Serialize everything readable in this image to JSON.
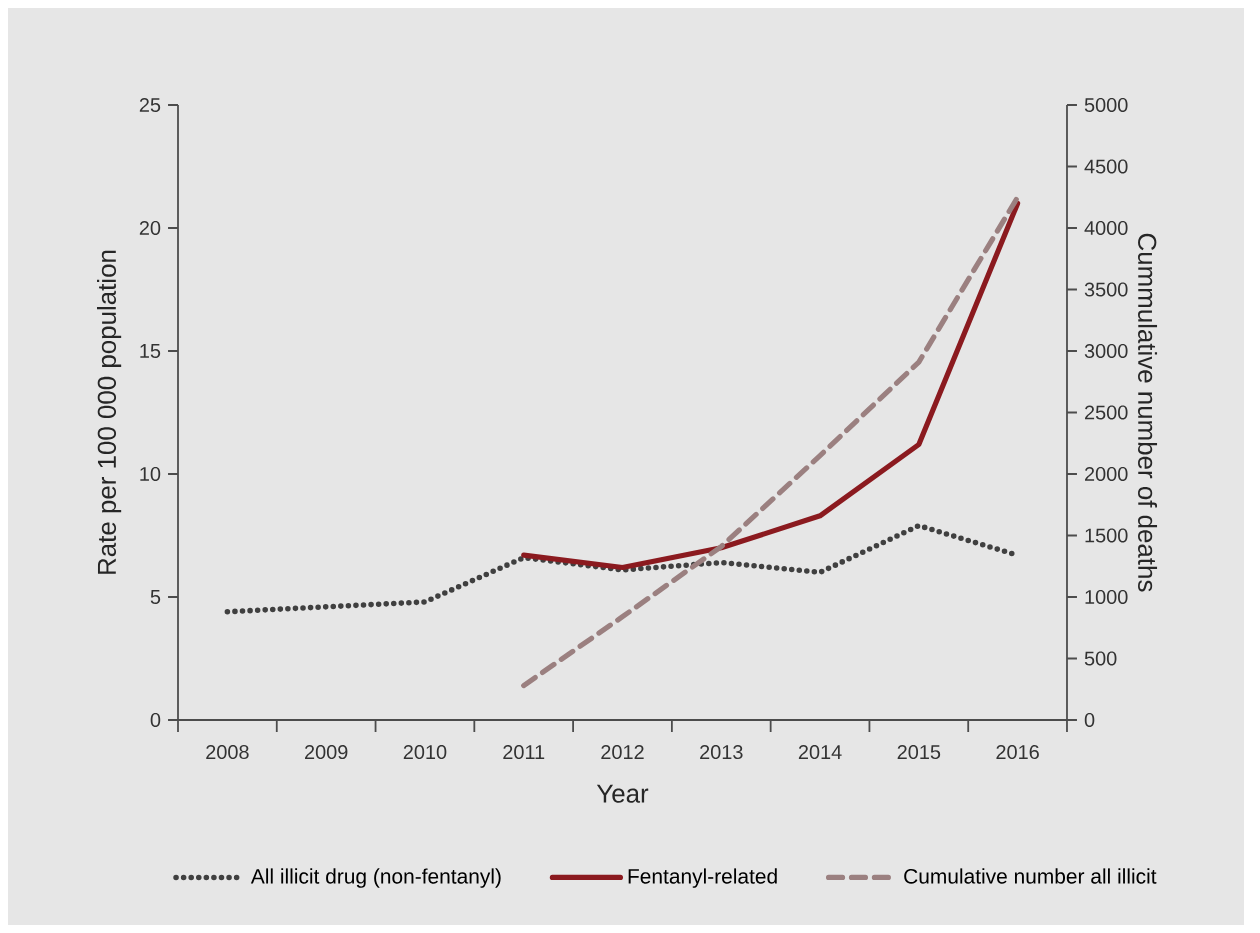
{
  "chart_data": {
    "type": "line",
    "xlabel": "Year",
    "ylabel": "Rate per 100 000 population",
    "y2label": "Cummulative number of deaths",
    "categories": [
      "2008",
      "2009",
      "2010",
      "2011",
      "2012",
      "2013",
      "2014",
      "2015",
      "2016"
    ],
    "series": [
      {
        "name": "All illicit drug (non-fentanyl)",
        "color": "#404040",
        "line_style": "dotted",
        "values": [
          4.4,
          4.6,
          4.8,
          6.6,
          6.1,
          6.4,
          6.0,
          7.9,
          6.7
        ]
      },
      {
        "name": "Fentanyl-related",
        "color": "#8b1a1f",
        "line_style": "solid",
        "values": [
          null,
          null,
          null,
          6.7,
          6.2,
          7.0,
          8.3,
          11.2,
          21.0
        ]
      },
      {
        "name": "Cumulative number all illicit",
        "color": "#9b8080",
        "line_style": "dashed",
        "axis": "y2",
        "values": [
          null,
          null,
          null,
          280,
          840,
          1410,
          2150,
          2910,
          4250
        ]
      }
    ],
    "ylim": [
      0,
      25
    ],
    "yticks": [
      0,
      5,
      10,
      15,
      20,
      25
    ],
    "y2lim": [
      0,
      5000
    ],
    "y2ticks": [
      0,
      500,
      1000,
      1500,
      2000,
      2500,
      3000,
      3500,
      4000,
      4500,
      5000
    ],
    "legend": "bottom"
  }
}
